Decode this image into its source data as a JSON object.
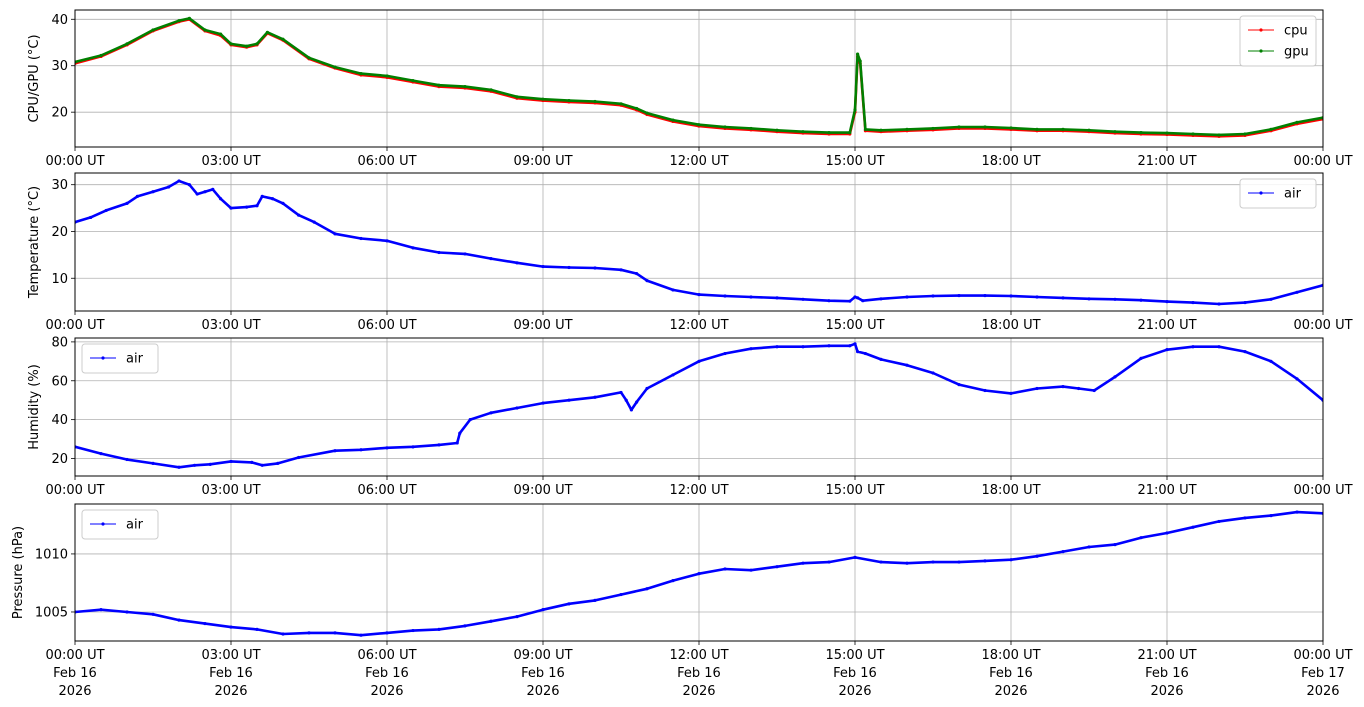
{
  "chart_data": [
    {
      "type": "line",
      "ylabel": "CPU/GPU (°C)",
      "ylim": [
        12.5,
        42
      ],
      "yticks": [
        20,
        30,
        40
      ],
      "xticks": [
        "00:00 UT",
        "03:00 UT",
        "06:00 UT",
        "09:00 UT",
        "12:00 UT",
        "15:00 UT",
        "18:00 UT",
        "21:00 UT",
        "00:00 UT"
      ],
      "xlim_hours": [
        0,
        24
      ],
      "grid": true,
      "legend": "top-right",
      "series": [
        {
          "name": "cpu",
          "color": "#ff0000",
          "x": [
            0,
            0.5,
            1.0,
            1.5,
            2.0,
            2.2,
            2.5,
            2.8,
            3.0,
            3.3,
            3.5,
            3.7,
            4.0,
            4.5,
            5.0,
            5.5,
            6.0,
            6.5,
            7.0,
            7.5,
            8.0,
            8.5,
            9.0,
            9.5,
            10.0,
            10.5,
            10.8,
            11.0,
            11.5,
            12.0,
            12.5,
            13.0,
            13.5,
            14.0,
            14.5,
            14.9,
            15.0,
            15.05,
            15.1,
            15.2,
            15.5,
            16.0,
            16.5,
            17.0,
            17.5,
            18.0,
            18.5,
            19.0,
            19.5,
            20.0,
            20.5,
            21.0,
            21.5,
            22.0,
            22.5,
            23.0,
            23.5,
            24.0
          ],
          "y": [
            30.5,
            32,
            34.5,
            37.5,
            39.5,
            40,
            37.5,
            36.5,
            34.5,
            34,
            34.5,
            37,
            35.5,
            31.5,
            29.5,
            28,
            27.5,
            26.5,
            25.5,
            25.2,
            24.5,
            23,
            22.5,
            22.2,
            22,
            21.5,
            20.5,
            19.5,
            18,
            17,
            16.5,
            16.2,
            15.8,
            15.5,
            15.3,
            15.3,
            20,
            32,
            30.5,
            16,
            15.8,
            16,
            16.2,
            16.5,
            16.5,
            16.3,
            16,
            16,
            15.8,
            15.5,
            15.3,
            15.2,
            15,
            14.8,
            15,
            16,
            17.5,
            18.5
          ]
        },
        {
          "name": "gpu",
          "color": "#008000",
          "x": [
            0,
            0.5,
            1.0,
            1.5,
            2.0,
            2.2,
            2.5,
            2.8,
            3.0,
            3.3,
            3.5,
            3.7,
            4.0,
            4.5,
            5.0,
            5.5,
            6.0,
            6.5,
            7.0,
            7.5,
            8.0,
            8.5,
            9.0,
            9.5,
            10.0,
            10.5,
            10.8,
            11.0,
            11.5,
            12.0,
            12.5,
            13.0,
            13.5,
            14.0,
            14.5,
            14.9,
            15.0,
            15.05,
            15.1,
            15.2,
            15.5,
            16.0,
            16.5,
            17.0,
            17.5,
            18.0,
            18.5,
            19.0,
            19.5,
            20.0,
            20.5,
            21.0,
            21.5,
            22.0,
            22.5,
            23.0,
            23.5,
            24.0
          ],
          "y": [
            30.8,
            32.2,
            34.7,
            37.7,
            39.7,
            40.2,
            37.7,
            36.8,
            34.7,
            34.2,
            34.7,
            37.2,
            35.7,
            31.7,
            29.7,
            28.3,
            27.8,
            26.8,
            25.8,
            25.5,
            24.8,
            23.3,
            22.8,
            22.5,
            22.3,
            21.8,
            20.8,
            19.8,
            18.3,
            17.3,
            16.8,
            16.5,
            16.1,
            15.8,
            15.6,
            15.6,
            20.5,
            32.5,
            31,
            16.3,
            16.1,
            16.3,
            16.5,
            16.8,
            16.8,
            16.6,
            16.3,
            16.3,
            16.1,
            15.8,
            15.6,
            15.5,
            15.3,
            15.1,
            15.3,
            16.3,
            17.8,
            18.8
          ]
        }
      ]
    },
    {
      "type": "line",
      "ylabel": "Temperature (°C)",
      "ylim": [
        3,
        32.5
      ],
      "yticks": [
        10,
        20,
        30
      ],
      "xticks": [
        "00:00 UT",
        "03:00 UT",
        "06:00 UT",
        "09:00 UT",
        "12:00 UT",
        "15:00 UT",
        "18:00 UT",
        "21:00 UT",
        "00:00 UT"
      ],
      "xlim_hours": [
        0,
        24
      ],
      "grid": true,
      "legend": "top-right",
      "series": [
        {
          "name": "air",
          "color": "#0000ff",
          "x": [
            0,
            0.3,
            0.6,
            1.0,
            1.2,
            1.5,
            1.8,
            2.0,
            2.2,
            2.35,
            2.5,
            2.65,
            2.8,
            3.0,
            3.3,
            3.5,
            3.6,
            3.8,
            4.0,
            4.3,
            4.6,
            5.0,
            5.5,
            6.0,
            6.5,
            7.0,
            7.5,
            8.0,
            8.5,
            9.0,
            9.5,
            10.0,
            10.5,
            10.8,
            11.0,
            11.5,
            12.0,
            12.5,
            13.0,
            13.5,
            14.0,
            14.5,
            14.9,
            15.0,
            15.05,
            15.15,
            15.5,
            16.0,
            16.5,
            17.0,
            17.5,
            18.0,
            18.5,
            19.0,
            19.5,
            20.0,
            20.5,
            21.0,
            21.5,
            22.0,
            22.5,
            23.0,
            23.5,
            24.0
          ],
          "y": [
            22,
            23,
            24.5,
            26,
            27.5,
            28.5,
            29.5,
            30.8,
            30,
            28,
            28.5,
            29,
            27,
            25,
            25.2,
            25.5,
            27.5,
            27,
            26,
            23.5,
            22,
            19.5,
            18.5,
            18,
            16.5,
            15.5,
            15.2,
            14.2,
            13.3,
            12.5,
            12.3,
            12.2,
            11.8,
            11,
            9.5,
            7.5,
            6.5,
            6.2,
            6,
            5.8,
            5.5,
            5.2,
            5.1,
            6,
            5.8,
            5.2,
            5.6,
            6,
            6.2,
            6.3,
            6.3,
            6.2,
            6,
            5.8,
            5.6,
            5.5,
            5.3,
            5,
            4.8,
            4.5,
            4.8,
            5.5,
            7,
            8.5
          ]
        }
      ]
    },
    {
      "type": "line",
      "ylabel": "Humidity (%)",
      "ylim": [
        11,
        82
      ],
      "yticks": [
        20,
        40,
        60,
        80
      ],
      "xticks": [
        "00:00 UT",
        "03:00 UT",
        "06:00 UT",
        "09:00 UT",
        "12:00 UT",
        "15:00 UT",
        "18:00 UT",
        "21:00 UT",
        "00:00 UT"
      ],
      "xlim_hours": [
        0,
        24
      ],
      "grid": true,
      "legend": "top-left",
      "series": [
        {
          "name": "air",
          "color": "#0000ff",
          "x": [
            0,
            0.5,
            1.0,
            1.5,
            2.0,
            2.3,
            2.6,
            3.0,
            3.4,
            3.6,
            3.9,
            4.3,
            5.0,
            5.5,
            6.0,
            6.5,
            7.0,
            7.35,
            7.4,
            7.6,
            8.0,
            8.5,
            9.0,
            9.5,
            10.0,
            10.5,
            10.6,
            10.7,
            10.8,
            11.0,
            11.5,
            12.0,
            12.5,
            13.0,
            13.5,
            14.0,
            14.5,
            14.9,
            15.0,
            15.05,
            15.2,
            15.5,
            16.0,
            16.5,
            17.0,
            17.5,
            18.0,
            18.5,
            19.0,
            19.3,
            19.6,
            20.0,
            20.5,
            21.0,
            21.5,
            22.0,
            22.5,
            23.0,
            23.5,
            24.0
          ],
          "y": [
            26,
            22.5,
            19.5,
            17.5,
            15.5,
            16.5,
            17,
            18.5,
            18,
            16.5,
            17.5,
            20.5,
            24,
            24.5,
            25.5,
            26,
            27,
            28,
            33,
            40,
            43.5,
            46,
            48.5,
            50,
            51.5,
            54,
            50,
            45,
            49,
            56,
            63,
            70,
            74,
            76.5,
            77.5,
            77.5,
            78,
            78,
            79,
            75,
            74,
            71,
            68,
            64,
            58,
            55,
            53.5,
            56,
            57,
            56,
            55,
            62,
            71.5,
            76,
            77.5,
            77.5,
            75,
            70,
            61,
            50
          ]
        }
      ]
    },
    {
      "type": "line",
      "ylabel": "Pressure (hPa)",
      "ylim": [
        1002.5,
        1014.3
      ],
      "yticks": [
        1005,
        1010
      ],
      "xticks": [
        "00:00 UT",
        "03:00 UT",
        "06:00 UT",
        "09:00 UT",
        "12:00 UT",
        "15:00 UT",
        "18:00 UT",
        "21:00 UT",
        "00:00 UT"
      ],
      "xdates": [
        "Feb 16",
        "Feb 16",
        "Feb 16",
        "Feb 16",
        "Feb 16",
        "Feb 16",
        "Feb 16",
        "Feb 16",
        "Feb 17"
      ],
      "xyears": [
        "2026",
        "2026",
        "2026",
        "2026",
        "2026",
        "2026",
        "2026",
        "2026",
        "2026"
      ],
      "xlim_hours": [
        0,
        24
      ],
      "grid": true,
      "legend": "top-left",
      "series": [
        {
          "name": "air",
          "color": "#0000ff",
          "x": [
            0,
            0.5,
            1.0,
            1.5,
            2.0,
            2.5,
            3.0,
            3.5,
            4.0,
            4.5,
            5.0,
            5.5,
            6.0,
            6.5,
            7.0,
            7.5,
            8.0,
            8.5,
            9.0,
            9.5,
            10.0,
            10.5,
            11.0,
            11.5,
            12.0,
            12.5,
            13.0,
            13.5,
            14.0,
            14.5,
            15.0,
            15.5,
            16.0,
            16.5,
            17.0,
            17.5,
            18.0,
            18.5,
            19.0,
            19.5,
            20.0,
            20.5,
            21.0,
            21.5,
            22.0,
            22.5,
            23.0,
            23.5,
            24.0
          ],
          "y": [
            1005,
            1005.2,
            1005,
            1004.8,
            1004.3,
            1004,
            1003.7,
            1003.5,
            1003.1,
            1003.2,
            1003.2,
            1003,
            1003.2,
            1003.4,
            1003.5,
            1003.8,
            1004.2,
            1004.6,
            1005.2,
            1005.7,
            1006,
            1006.5,
            1007,
            1007.7,
            1008.3,
            1008.7,
            1008.6,
            1008.9,
            1009.2,
            1009.3,
            1009.7,
            1009.3,
            1009.2,
            1009.3,
            1009.3,
            1009.4,
            1009.5,
            1009.8,
            1010.2,
            1010.6,
            1010.8,
            1011.4,
            1011.8,
            1012.3,
            1012.8,
            1013.1,
            1013.3,
            1013.6,
            1013.5
          ]
        }
      ]
    }
  ]
}
